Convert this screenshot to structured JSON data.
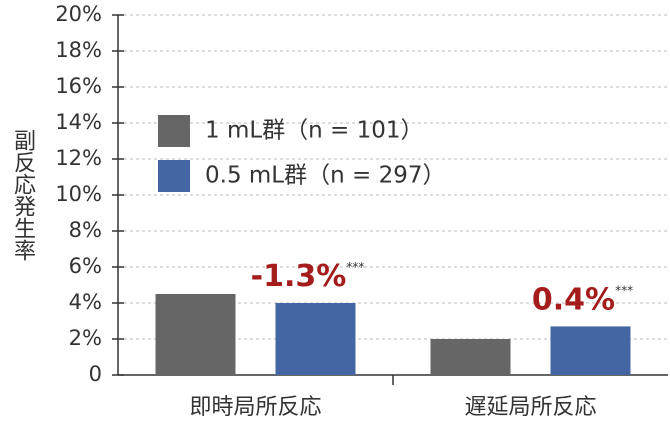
{
  "chart_data": {
    "type": "bar",
    "ylabel": "副反応発生率",
    "categories": [
      "即時局所反応",
      "遅延局所反応"
    ],
    "series": [
      {
        "name": "1 mL群（n = 101）",
        "color": "#666666",
        "values": [
          4.5,
          2.0
        ]
      },
      {
        "name": "0.5 mL群（n = 297）",
        "color": "#4467a3",
        "values": [
          4.0,
          2.7
        ]
      }
    ],
    "annotations": [
      {
        "text": "-1.3%",
        "sup": "***"
      },
      {
        "text": "0.4%",
        "sup": "***"
      }
    ],
    "annotation_color": "#a51c1c",
    "ylim": [
      0,
      20
    ],
    "yticks": [
      0,
      {
        "value": 2,
        "label": "2%"
      },
      {
        "value": 4,
        "label": "4%"
      },
      {
        "value": 6,
        "label": "6%"
      },
      {
        "value": 8,
        "label": "8%"
      },
      {
        "value": 10,
        "label": "10%"
      },
      {
        "value": 12,
        "label": "12%"
      },
      {
        "value": 14,
        "label": "14%"
      },
      {
        "value": 16,
        "label": "16%"
      },
      {
        "value": 18,
        "label": "18%"
      },
      {
        "value": 20,
        "label": "20%"
      }
    ],
    "grid": true
  }
}
